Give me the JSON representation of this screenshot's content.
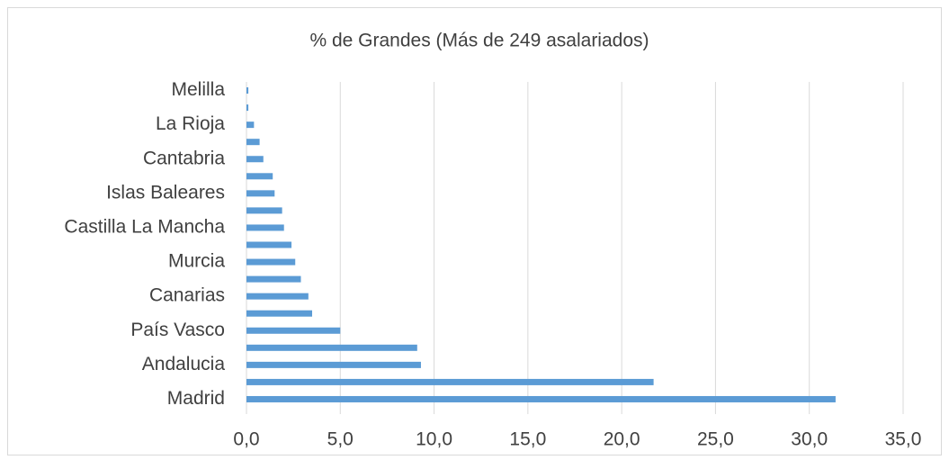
{
  "chart_data": {
    "type": "bar",
    "orientation": "horizontal",
    "title": "% de Grandes (Más de 249 asalariados)",
    "categories": [
      "Madrid",
      null,
      "Andalucia",
      null,
      "País Vasco",
      null,
      "Canarias",
      null,
      "Murcia",
      null,
      "Castilla La Mancha",
      null,
      "Islas Baleares",
      null,
      "Cantabria",
      null,
      "La Rioja",
      null,
      "Melilla"
    ],
    "values": [
      31.4,
      21.7,
      9.3,
      9.1,
      5.0,
      3.5,
      3.3,
      2.9,
      2.6,
      2.4,
      2.0,
      1.9,
      1.5,
      1.4,
      0.9,
      0.7,
      0.4,
      0.1,
      0.1
    ],
    "color": "#5b9bd5",
    "xlim": [
      0,
      35
    ],
    "xticks": [
      {
        "value": 0,
        "label": "0,0"
      },
      {
        "value": 5,
        "label": "5,0"
      },
      {
        "value": 10,
        "label": "10,0"
      },
      {
        "value": 15,
        "label": "15,0"
      },
      {
        "value": 20,
        "label": "20,0"
      },
      {
        "value": 25,
        "label": "25,0"
      },
      {
        "value": 30,
        "label": "30,0"
      },
      {
        "value": 35,
        "label": "35,0"
      }
    ],
    "grid": true
  }
}
